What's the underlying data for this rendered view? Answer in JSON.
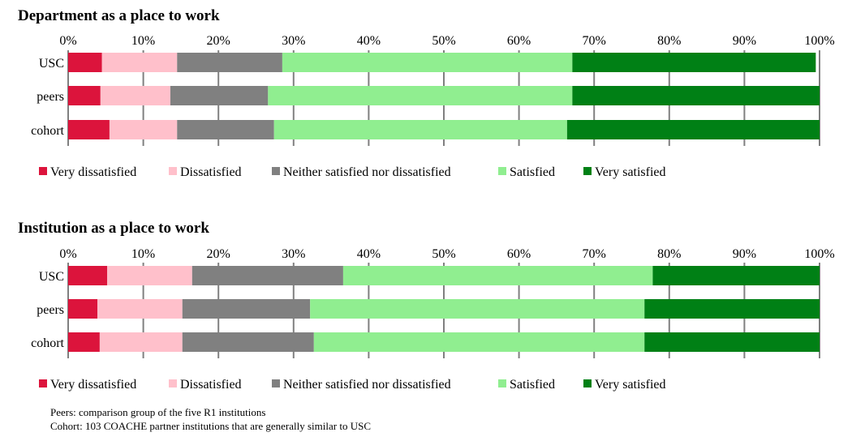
{
  "colors": {
    "very_dissatisfied": "#dc143c",
    "dissatisfied": "#ffc0cb",
    "neither": "#808080",
    "satisfied": "#90ee90",
    "very_satisfied": "#008015",
    "grid": "#808080"
  },
  "chart_data": [
    {
      "type": "bar",
      "stacked": true,
      "orientation": "horizontal",
      "title": "Department as a place to work",
      "xlim": [
        0,
        100
      ],
      "x_tick_labels": [
        "0%",
        "10%",
        "20%",
        "30%",
        "40%",
        "50%",
        "60%",
        "70%",
        "80%",
        "90%",
        "100%"
      ],
      "categories": [
        "USC",
        "peers",
        "cohort"
      ],
      "grid": true,
      "legend_position": "bottom",
      "series": [
        {
          "name": "Very dissatisfied",
          "values": [
            4.5,
            4.3,
            5.5
          ]
        },
        {
          "name": "Dissatisfied",
          "values": [
            10.0,
            9.3,
            9.0
          ]
        },
        {
          "name": "Neither satisfied nor dissatisfied",
          "values": [
            14.0,
            13.0,
            12.9
          ]
        },
        {
          "name": "Satisfied",
          "values": [
            38.6,
            40.5,
            39.0
          ]
        },
        {
          "name": "Very satisfied",
          "values": [
            32.4,
            32.9,
            33.6
          ]
        }
      ]
    },
    {
      "type": "bar",
      "stacked": true,
      "orientation": "horizontal",
      "title": "Institution as a place to work",
      "xlim": [
        0,
        100
      ],
      "x_tick_labels": [
        "0%",
        "10%",
        "20%",
        "30%",
        "40%",
        "50%",
        "60%",
        "70%",
        "80%",
        "90%",
        "100%"
      ],
      "categories": [
        "USC",
        "peers",
        "cohort"
      ],
      "grid": true,
      "legend_position": "bottom",
      "series": [
        {
          "name": "Very dissatisfied",
          "values": [
            5.2,
            3.9,
            4.2
          ]
        },
        {
          "name": "Dissatisfied",
          "values": [
            11.3,
            11.3,
            11.0
          ]
        },
        {
          "name": "Neither satisfied nor dissatisfied",
          "values": [
            20.1,
            17.0,
            17.5
          ]
        },
        {
          "name": "Satisfied",
          "values": [
            41.2,
            44.5,
            44.0
          ]
        },
        {
          "name": "Very satisfied",
          "values": [
            22.2,
            23.3,
            23.3
          ]
        }
      ]
    }
  ],
  "footnotes": [
    "Peers:  comparison group of the five R1 institutions",
    "Cohort:  103 COACHE partner institutions that are generally similar to USC"
  ]
}
